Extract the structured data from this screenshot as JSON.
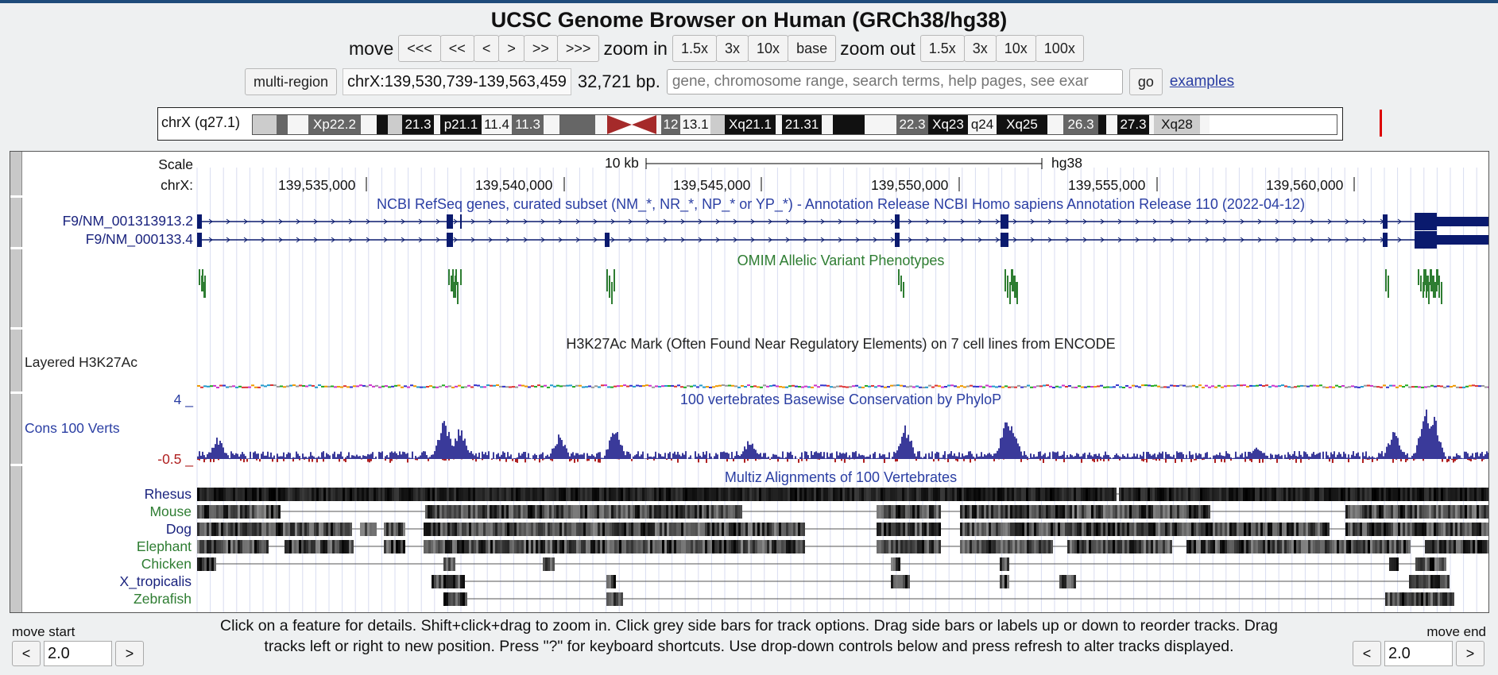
{
  "title": "UCSC Genome Browser on Human (GRCh38/hg38)",
  "nav": {
    "move_label": "move",
    "move_buttons": [
      "<<<",
      "<<",
      "<",
      ">",
      ">>",
      ">>>"
    ],
    "zoom_in_label": "zoom in",
    "zoom_in_buttons": [
      "1.5x",
      "3x",
      "10x",
      "base"
    ],
    "zoom_out_label": "zoom out",
    "zoom_out_buttons": [
      "1.5x",
      "3x",
      "10x",
      "100x"
    ]
  },
  "position": {
    "multi_region": "multi-region",
    "value": "chrX:139,530,739-139,563,459",
    "size": "32,721 bp.",
    "search_placeholder": "gene, chromosome range, search terms, help pages, see exar",
    "go": "go",
    "examples": "examples"
  },
  "ideogram": {
    "label": "chrX (q27.1)",
    "bands": [
      {
        "t": "",
        "k": "lt",
        "w": 30
      },
      {
        "t": "",
        "k": "md",
        "w": 14
      },
      {
        "t": "",
        "k": "wh",
        "w": 26
      },
      {
        "t": "Xp22.2",
        "k": "md",
        "w": 66
      },
      {
        "t": "",
        "k": "wh",
        "w": 20
      },
      {
        "t": "",
        "k": "dk",
        "w": 14
      },
      {
        "t": "",
        "k": "lt",
        "w": 18
      },
      {
        "t": "21.3",
        "k": "dk",
        "w": 40
      },
      {
        "t": "",
        "k": "wh",
        "w": 8
      },
      {
        "t": "p21.1",
        "k": "dk",
        "w": 52
      },
      {
        "t": "11.4",
        "k": "wh",
        "w": 38
      },
      {
        "t": "11.3",
        "k": "md",
        "w": 40
      },
      {
        "t": "",
        "k": "wh",
        "w": 20
      },
      {
        "t": "",
        "k": "md",
        "w": 45
      },
      {
        "t": "",
        "k": "wh",
        "w": 15
      },
      {
        "t": "",
        "k": "cen",
        "w": 62
      },
      {
        "t": "",
        "k": "wh",
        "w": 6
      },
      {
        "t": "12",
        "k": "md",
        "w": 24
      },
      {
        "t": "13.1",
        "k": "wh",
        "w": 38
      },
      {
        "t": "",
        "k": "lt",
        "w": 18
      },
      {
        "t": "Xq21.1",
        "k": "dk",
        "w": 64
      },
      {
        "t": "",
        "k": "wh",
        "w": 8
      },
      {
        "t": "21.31",
        "k": "dk",
        "w": 50
      },
      {
        "t": "",
        "k": "wh",
        "w": 14
      },
      {
        "t": "",
        "k": "dk",
        "w": 40
      },
      {
        "t": "",
        "k": "wh",
        "w": 40
      },
      {
        "t": "22.3",
        "k": "md",
        "w": 40
      },
      {
        "t": "Xq23",
        "k": "dk",
        "w": 50
      },
      {
        "t": "q24",
        "k": "wh",
        "w": 36
      },
      {
        "t": "Xq25",
        "k": "dk",
        "w": 64
      },
      {
        "t": "",
        "k": "wh",
        "w": 20
      },
      {
        "t": "26.3",
        "k": "md",
        "w": 44
      },
      {
        "t": "",
        "k": "dk",
        "w": 10
      },
      {
        "t": "",
        "k": "wh",
        "w": 14
      },
      {
        "t": "27.3",
        "k": "dk",
        "w": 40
      },
      {
        "t": "",
        "k": "wh",
        "w": 6
      },
      {
        "t": "Xq28",
        "k": "lt",
        "w": 58
      },
      {
        "t": "",
        "k": "wh",
        "w": 12
      }
    ]
  },
  "browser": {
    "scale_label": "Scale",
    "chrom_label": "chrX:",
    "scale_bar": "10 kb",
    "assembly": "hg38",
    "coords": [
      "139,535,000",
      "139,540,000",
      "139,545,000",
      "139,550,000",
      "139,555,000",
      "139,560,000"
    ],
    "refseq_title": "NCBI RefSeq genes, curated subset (NM_*, NR_*, NP_* or YP_*) - Annotation Release NCBI Homo sapiens Annotation Release 110 (2022-04-12)",
    "transcripts": [
      "F9/NM_001313913.2",
      "F9/NM_000133.4"
    ],
    "omim_title": "OMIM Allelic Variant Phenotypes",
    "h3k27_title": "H3K27Ac Mark (Often Found Near Regulatory Elements) on 7 cell lines from ENCODE",
    "h3k27_label": "Layered H3K27Ac",
    "cons_title": "100 vertebrates Basewise Conservation by PhyloP",
    "cons_label": "Cons 100 Verts",
    "cons_max": "4 _",
    "cons_min": "-0.5 _",
    "multiz_title": "Multiz Alignments of 100 Vertebrates",
    "species": [
      {
        "name": "Rhesus",
        "color": "#1a237e"
      },
      {
        "name": "Mouse",
        "color": "#2e7d32"
      },
      {
        "name": "Dog",
        "color": "#1a237e"
      },
      {
        "name": "Elephant",
        "color": "#2e7d32"
      },
      {
        "name": "Chicken",
        "color": "#2e7d32"
      },
      {
        "name": "X_tropicalis",
        "color": "#1a237e"
      },
      {
        "name": "Zebrafish",
        "color": "#2e7d32"
      }
    ]
  },
  "footer": {
    "move_start": "move start",
    "move_end": "move end",
    "left_value": "2.0",
    "right_value": "2.0",
    "instructions": "Click on a feature for details. Shift+click+drag to zoom in. Click grey side bars for track options. Drag side bars or labels up or down to reorder tracks. Drag tracks left or right to new position. Press \"?\" for keyboard shortcuts. Use drop-down controls below and press refresh to alter tracks displayed.",
    "left_arrow": "<",
    "right_arrow": ">"
  },
  "colors": {
    "gene": "#0a1a6e",
    "omim": "#2e7d32",
    "cons_pos": "#3a3a9a",
    "cons_neg": "#b02020",
    "label_blue": "#2a3ea3"
  }
}
